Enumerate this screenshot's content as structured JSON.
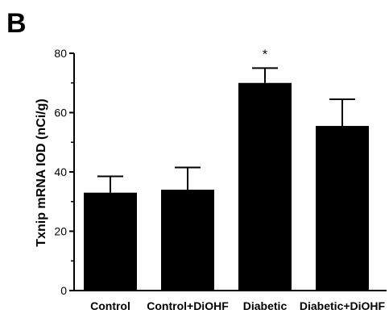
{
  "panel_label": "B",
  "chart_data": {
    "type": "bar",
    "categories": [
      "Control",
      "Control+DiOHF",
      "Diabetic",
      "Diabetic+DiOHF"
    ],
    "values": [
      33,
      34,
      70,
      55.5
    ],
    "errors": [
      5.5,
      7.5,
      5,
      9
    ],
    "annotations": [
      "",
      "",
      "*",
      ""
    ],
    "ylabel": "Txnip mRNA IOD (nCi/g)",
    "ylim": [
      0,
      80
    ],
    "yticks": [
      0,
      20,
      40,
      60,
      80
    ],
    "bar_color": "#000000",
    "grid": false
  }
}
